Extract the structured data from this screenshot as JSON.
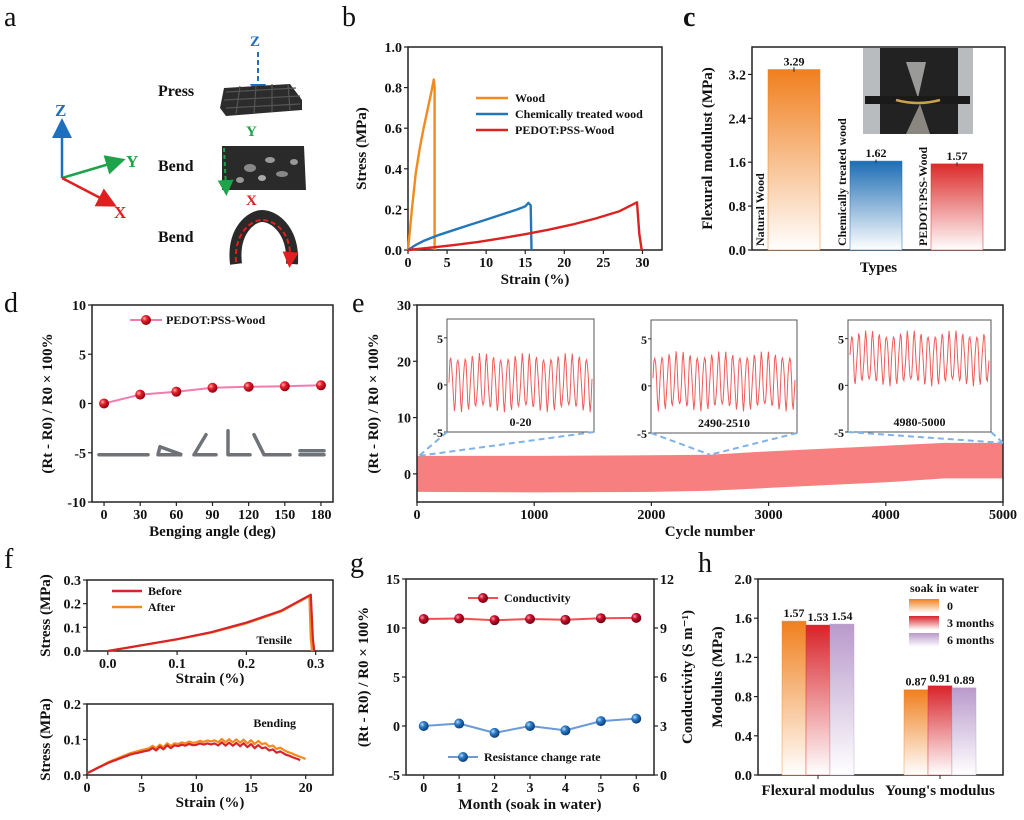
{
  "panels": {
    "a": {
      "letter": "a",
      "axes": {
        "z": "Z",
        "y": "Y",
        "x": "X"
      },
      "colors": {
        "z": "#1f6fbf",
        "y": "#1ea34a",
        "x": "#e02020"
      },
      "rows": [
        {
          "label": "Press",
          "axis": "Z"
        },
        {
          "label": "Bend",
          "axis": "Y"
        },
        {
          "label": "Bend",
          "axis": "X"
        }
      ]
    },
    "b": {
      "letter": "b"
    },
    "c": {
      "letter": "c"
    },
    "d": {
      "letter": "d"
    },
    "e": {
      "letter": "e"
    },
    "f": {
      "letter": "f"
    },
    "g": {
      "letter": "g"
    },
    "h": {
      "letter": "h"
    }
  },
  "chart_data": [
    {
      "id": "b",
      "type": "line",
      "title": "",
      "xlabel": "Strain (%)",
      "ylabel": "Stress (MPa)",
      "xlim": [
        0,
        32.5
      ],
      "ylim": [
        0,
        1.0
      ],
      "xticks": [
        "0",
        "5",
        "10",
        "15",
        "20",
        "25",
        "30"
      ],
      "yticks": [
        "0.0",
        "0.2",
        "0.4",
        "0.6",
        "0.8",
        "1.0"
      ],
      "legend_position": "top-right",
      "series": [
        {
          "name": "Wood",
          "color": "#f28a1e",
          "x": [
            0,
            0.5,
            1,
            1.5,
            2,
            2.5,
            3,
            3.3,
            3.4,
            3.4
          ],
          "y": [
            0,
            0.2,
            0.38,
            0.5,
            0.6,
            0.69,
            0.78,
            0.84,
            0.8,
            0
          ]
        },
        {
          "name": "Chemically treated wood",
          "color": "#2277bb",
          "x": [
            0,
            1,
            2,
            4,
            6,
            8,
            10,
            12,
            14,
            15,
            15.4,
            15.7,
            15.8
          ],
          "y": [
            0,
            0.025,
            0.045,
            0.075,
            0.1,
            0.125,
            0.15,
            0.175,
            0.2,
            0.215,
            0.232,
            0.22,
            0
          ]
        },
        {
          "name": "PEDOT:PSS-Wood",
          "color": "#dd2222",
          "x": [
            0,
            3,
            6,
            9,
            12,
            15,
            18,
            21,
            24,
            27,
            29.3,
            29.6,
            29.9
          ],
          "y": [
            0,
            0.012,
            0.025,
            0.04,
            0.058,
            0.078,
            0.1,
            0.125,
            0.155,
            0.19,
            0.235,
            0.08,
            0
          ]
        }
      ]
    },
    {
      "id": "c",
      "type": "bar",
      "xlabel": "Types",
      "ylabel": "Flexural modulust (MPa)",
      "ylim": [
        0,
        3.7
      ],
      "yticks": [
        "0.0",
        "0.8",
        "1.6",
        "2.4",
        "3.2"
      ],
      "categories": [
        "Natural Wood",
        "Chemically treated wood",
        "PEDOT:PSS-Wood"
      ],
      "values": [
        3.29,
        1.62,
        1.57
      ],
      "data_labels": [
        "3.29",
        "1.62",
        "1.57"
      ],
      "error": [
        0.04,
        0.03,
        0.03
      ],
      "colors": [
        "#f07f1e",
        "#1e6db5",
        "#dd2a2a"
      ],
      "inset": "photo of bending test fixture"
    },
    {
      "id": "d",
      "type": "line",
      "xlabel": "Benging angle (deg)",
      "ylabel": "(Rt - R0) / R0 × 100%",
      "xlim": [
        -10,
        190
      ],
      "ylim": [
        -10,
        10
      ],
      "xticks": [
        "0",
        "30",
        "60",
        "90",
        "120",
        "150",
        "180"
      ],
      "yticks": [
        "-10",
        "-5",
        "0",
        "5",
        "10"
      ],
      "legend_position": "top-left",
      "series": [
        {
          "name": "PEDOT:PSS-Wood",
          "color": "#f07cb0",
          "marker_color": "#e8202c",
          "x": [
            0,
            30,
            60,
            90,
            120,
            150,
            180
          ],
          "y": [
            0,
            0.9,
            1.2,
            1.6,
            1.7,
            1.75,
            1.85
          ]
        }
      ],
      "annotations": [
        "bending schematic icons at 0,30,60,90,120,150,180 deg"
      ]
    },
    {
      "id": "e",
      "type": "area",
      "xlabel": "Cycle number",
      "ylabel": "(Rt - R0) / R0 × 100%",
      "xlim": [
        0,
        5000
      ],
      "ylim": [
        -5,
        30
      ],
      "xticks": [
        "0",
        "1000",
        "2000",
        "3000",
        "4000",
        "5000"
      ],
      "yticks": [
        "0",
        "10",
        "20",
        "30"
      ],
      "band": {
        "color": "#f77f7f",
        "x": [
          0,
          1000,
          2000,
          2500,
          3000,
          4000,
          4500,
          5000
        ],
        "upper": [
          3.2,
          3.2,
          3.3,
          3.4,
          4.0,
          5.0,
          5.5,
          5.5
        ],
        "lower": [
          -3.2,
          -3.3,
          -3.2,
          -3.0,
          -2.5,
          -1.5,
          -0.8,
          -0.8
        ]
      },
      "insets": [
        {
          "label": "0-20",
          "yticks": [
            "-5",
            "0",
            "5"
          ],
          "ylim": [
            -5,
            7
          ],
          "peak": 3.0,
          "trough": -2.5,
          "cycles": 20
        },
        {
          "label": "2490-2510",
          "yticks": [
            "-5",
            "0",
            "5"
          ],
          "ylim": [
            -5,
            7
          ],
          "peak": 3.3,
          "trough": -2.3,
          "cycles": 20
        },
        {
          "label": "4980-5000",
          "yticks": [
            "-5",
            "0",
            "5"
          ],
          "ylim": [
            -5,
            7
          ],
          "peak": 5.5,
          "trough": 0.3,
          "cycles": 20
        }
      ]
    },
    {
      "id": "f_top",
      "type": "line",
      "xlabel": "Strain (%)",
      "ylabel": "Stress (MPa)",
      "xlim": [
        -0.03,
        0.325
      ],
      "ylim": [
        0,
        0.3
      ],
      "xticks": [
        "0.0",
        "0.1",
        "0.2",
        "0.3"
      ],
      "yticks": [
        "0.0",
        "0.1",
        "0.2",
        "0.3"
      ],
      "annotation": "Tensile",
      "legend_position": "top-left",
      "series": [
        {
          "name": "Before",
          "color": "#d8232a",
          "x": [
            0,
            0.05,
            0.1,
            0.15,
            0.2,
            0.25,
            0.293,
            0.296,
            0.298
          ],
          "y": [
            0,
            0.025,
            0.05,
            0.08,
            0.12,
            0.17,
            0.238,
            0.05,
            0
          ]
        },
        {
          "name": "After",
          "color": "#f28a1e",
          "x": [
            0,
            0.05,
            0.1,
            0.15,
            0.2,
            0.25,
            0.291,
            0.293,
            0.295
          ],
          "y": [
            0,
            0.024,
            0.049,
            0.078,
            0.117,
            0.167,
            0.232,
            0.05,
            0
          ]
        }
      ]
    },
    {
      "id": "f_bottom",
      "type": "line",
      "xlabel": "Strain (%)",
      "ylabel": "Stress (MPa)",
      "xlim": [
        0,
        22.5
      ],
      "ylim": [
        0,
        0.2
      ],
      "xticks": [
        "0",
        "5",
        "10",
        "15",
        "20"
      ],
      "yticks": [
        "0.0",
        "0.1",
        "0.2"
      ],
      "annotation": "Bending",
      "series": [
        {
          "name": "Before",
          "color": "#d8232a",
          "x": [
            0,
            2,
            4,
            6,
            8,
            10,
            12,
            14,
            16,
            18,
            19.5
          ],
          "y": [
            0.005,
            0.035,
            0.058,
            0.072,
            0.082,
            0.087,
            0.088,
            0.086,
            0.078,
            0.06,
            0.042
          ]
        },
        {
          "name": "After",
          "color": "#f28a1e",
          "x": [
            0,
            2,
            4,
            6,
            8,
            10,
            12,
            14,
            16,
            18,
            20
          ],
          "y": [
            0.005,
            0.037,
            0.062,
            0.078,
            0.088,
            0.094,
            0.097,
            0.096,
            0.09,
            0.07,
            0.045
          ]
        }
      ]
    },
    {
      "id": "g",
      "type": "line",
      "xlabel": "Month (soak in water)",
      "ylabel": "(Rt - R0) / R0 × 100%",
      "ylabel_right": "Conductivity (S m⁻¹)",
      "xlim": [
        -0.5,
        6.5
      ],
      "ylim": [
        -5,
        15
      ],
      "ylim_right": [
        0,
        12
      ],
      "xticks": [
        "0",
        "1",
        "2",
        "3",
        "4",
        "5",
        "6"
      ],
      "yticks": [
        "-5",
        "0",
        "5",
        "10",
        "15"
      ],
      "yticks_right": [
        "0",
        "3",
        "6",
        "9",
        "12"
      ],
      "series": [
        {
          "name": "Conductivity",
          "axis": "right",
          "color": "#f05050",
          "marker_color": "#c8102e",
          "x": [
            0,
            1,
            2,
            3,
            4,
            5,
            6
          ],
          "y": [
            9.55,
            9.58,
            9.48,
            9.55,
            9.5,
            9.6,
            9.62
          ]
        },
        {
          "name": "Resistance change rate",
          "axis": "left",
          "color": "#6a9ad8",
          "marker_color": "#2b7cc6",
          "x": [
            0,
            1,
            2,
            3,
            4,
            5,
            6
          ],
          "y": [
            0,
            0.25,
            -0.7,
            0,
            -0.45,
            0.5,
            0.75
          ]
        }
      ]
    },
    {
      "id": "h",
      "type": "bar",
      "xlabel": "",
      "ylabel": "Modulus (MPa)",
      "ylim": [
        0,
        2.0
      ],
      "yticks": [
        "0.0",
        "0.4",
        "0.8",
        "1.2",
        "1.6",
        "2.0"
      ],
      "categories": [
        "Flexural modulus",
        "Young's modulus"
      ],
      "legend_title": "soak in water",
      "legend_position": "top-right",
      "series": [
        {
          "name": "0",
          "color": "#f07f1e",
          "values": [
            1.57,
            0.87
          ]
        },
        {
          "name": "3 months",
          "color": "#d8232a",
          "values": [
            1.53,
            0.91
          ]
        },
        {
          "name": "6 months",
          "color": "#b99acb",
          "values": [
            1.54,
            0.89
          ]
        }
      ]
    }
  ]
}
